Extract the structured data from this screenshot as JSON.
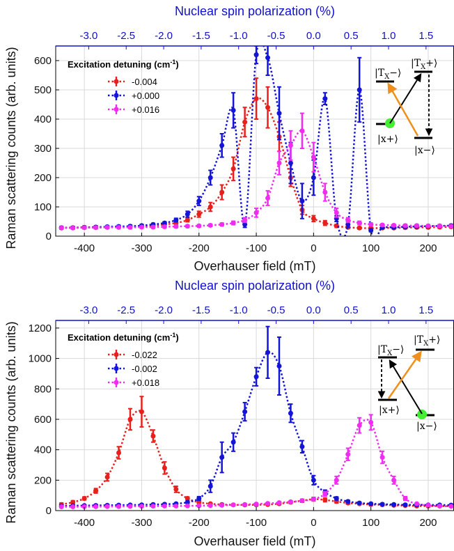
{
  "colors": {
    "red": "#e8201c",
    "blue": "#1414d8",
    "magenta": "#f02cf0",
    "orange": "#f0901c",
    "green": "#44ee33",
    "top_axis": "#1010d0"
  },
  "chart_data": [
    {
      "type": "scatter",
      "xlabel": "Overhauser field (mT)",
      "ylabel": "Raman scattering counts (arb. units)",
      "x2label": "Nuclear spin polarization (%)",
      "xlim": [
        -450,
        245
      ],
      "ylim": [
        0,
        650
      ],
      "x_ticks": [
        "-400",
        "-300",
        "-200",
        "-100",
        "0",
        "100",
        "200"
      ],
      "y_ticks": [
        "0",
        "100",
        "200",
        "300",
        "400",
        "500",
        "600"
      ],
      "x2_ticks": [
        "-3.0",
        "-2.5",
        "-2.0",
        "-1.5",
        "-1.0",
        "-0.5",
        "0.0",
        "0.5",
        "1.0",
        "1.5"
      ],
      "x2_mT_per_percent": 130.8,
      "legend_title": "Excitation detuning (cm",
      "legend_title_sup": "-1",
      "legend_title_end": ")",
      "legend_location": "upper-left",
      "grid": true,
      "series": [
        {
          "name": "-0.004",
          "color": "#e8201c",
          "x": [
            -440,
            -420,
            -400,
            -380,
            -360,
            -340,
            -320,
            -300,
            -280,
            -260,
            -240,
            -220,
            -200,
            -180,
            -160,
            -140,
            -120,
            -100,
            -80,
            -60,
            -40,
            -20,
            0,
            20,
            40,
            60,
            80,
            100,
            120,
            140,
            160,
            180,
            200,
            220,
            240
          ],
          "y": [
            28,
            29,
            30,
            30,
            31,
            32,
            33,
            34,
            36,
            40,
            45,
            55,
            75,
            100,
            150,
            230,
            390,
            470,
            440,
            340,
            200,
            90,
            60,
            45,
            35,
            30,
            28,
            27,
            28,
            28,
            29,
            30,
            30,
            31,
            32
          ],
          "err": [
            4,
            4,
            4,
            4,
            4,
            4,
            4,
            4,
            4,
            4,
            5,
            6,
            10,
            15,
            25,
            40,
            50,
            70,
            70,
            50,
            30,
            15,
            10,
            8,
            5,
            4,
            4,
            4,
            4,
            4,
            4,
            4,
            4,
            4,
            4
          ]
        },
        {
          "name": "+0.000",
          "color": "#1414d8",
          "x": [
            -440,
            -420,
            -400,
            -380,
            -360,
            -340,
            -320,
            -300,
            -280,
            -260,
            -240,
            -220,
            -200,
            -180,
            -160,
            -140,
            -120,
            -100,
            -80,
            -60,
            -40,
            -20,
            0,
            20,
            40,
            60,
            80,
            100,
            120,
            140,
            160,
            180,
            200,
            220,
            240
          ],
          "y": [
            29,
            29,
            30,
            31,
            32,
            33,
            34,
            36,
            40,
            45,
            55,
            75,
            120,
            200,
            310,
            430,
            40,
            620,
            610,
            420,
            250,
            120,
            200,
            470,
            60,
            40,
            500,
            20,
            30,
            30,
            32,
            33,
            34,
            35,
            36
          ],
          "err": [
            4,
            4,
            4,
            4,
            4,
            4,
            4,
            4,
            4,
            4,
            6,
            10,
            15,
            25,
            40,
            60,
            10,
            30,
            60,
            90,
            70,
            60,
            60,
            20,
            10,
            10,
            110,
            5,
            4,
            4,
            4,
            4,
            4,
            4,
            4
          ]
        },
        {
          "name": "+0.016",
          "color": "#f02cf0",
          "x": [
            -440,
            -420,
            -400,
            -380,
            -360,
            -340,
            -320,
            -300,
            -280,
            -260,
            -240,
            -220,
            -200,
            -180,
            -160,
            -140,
            -120,
            -100,
            -80,
            -60,
            -40,
            -20,
            0,
            20,
            40,
            60,
            80,
            100,
            120,
            140,
            160,
            180,
            200,
            220,
            240
          ],
          "y": [
            28,
            28,
            29,
            29,
            30,
            30,
            30,
            31,
            31,
            32,
            33,
            34,
            35,
            37,
            40,
            45,
            55,
            80,
            130,
            250,
            310,
            360,
            270,
            150,
            80,
            55,
            45,
            40,
            38,
            37,
            36,
            36,
            35,
            35,
            34
          ],
          "err": [
            4,
            4,
            4,
            4,
            4,
            4,
            4,
            4,
            4,
            4,
            4,
            4,
            4,
            4,
            5,
            6,
            8,
            15,
            25,
            40,
            50,
            60,
            50,
            30,
            15,
            8,
            6,
            5,
            4,
            4,
            4,
            4,
            4,
            4,
            4
          ]
        }
      ],
      "inset": {
        "levels": [
          "|T",
          "X",
          "−⟩",
          "|T",
          "X",
          "+⟩",
          "|x+⟩",
          "|x−⟩"
        ]
      }
    },
    {
      "type": "scatter",
      "xlabel": "Overhauser field (mT)",
      "ylabel": "Raman scattering counts (arb. units)",
      "x2label": "Nuclear spin polarization (%)",
      "xlim": [
        -450,
        245
      ],
      "ylim": [
        0,
        1250
      ],
      "x_ticks": [
        "-400",
        "-300",
        "-200",
        "-100",
        "0",
        "100",
        "200"
      ],
      "y_ticks": [
        "0",
        "200",
        "400",
        "600",
        "800",
        "1000",
        "1200"
      ],
      "x2_ticks": [
        "-3.0",
        "-2.5",
        "-2.0",
        "-1.5",
        "-1.0",
        "-0.5",
        "0.0",
        "0.5",
        "1.0",
        "1.5"
      ],
      "x2_mT_per_percent": 130.8,
      "legend_title": "Excitation detuning (cm",
      "legend_title_sup": "-1",
      "legend_title_end": ")",
      "legend_location": "upper-left",
      "grid": true,
      "series": [
        {
          "name": "-0.022",
          "color": "#e8201c",
          "x": [
            -440,
            -420,
            -400,
            -380,
            -360,
            -340,
            -320,
            -300,
            -280,
            -260,
            -240,
            -220,
            -200,
            -180,
            -160,
            -140,
            -120,
            -100,
            -80,
            -60,
            -40,
            -20,
            0,
            20,
            40,
            60,
            80,
            100,
            120,
            140,
            160,
            180,
            200,
            220,
            240
          ],
          "y": [
            40,
            55,
            80,
            130,
            220,
            380,
            600,
            650,
            490,
            280,
            140,
            80,
            55,
            45,
            40,
            38,
            37,
            38,
            40,
            45,
            55,
            65,
            75,
            70,
            60,
            50,
            45,
            40,
            38,
            35,
            33,
            30,
            30,
            30,
            30
          ],
          "err": [
            10,
            10,
            10,
            15,
            25,
            40,
            70,
            100,
            40,
            40,
            20,
            10,
            8,
            6,
            6,
            6,
            6,
            6,
            6,
            6,
            8,
            10,
            12,
            12,
            10,
            8,
            6,
            6,
            6,
            6,
            6,
            6,
            6,
            6,
            6
          ]
        },
        {
          "name": "-0.002",
          "color": "#1414d8",
          "x": [
            -440,
            -420,
            -400,
            -380,
            -360,
            -340,
            -320,
            -300,
            -280,
            -260,
            -240,
            -220,
            -200,
            -180,
            -160,
            -140,
            -120,
            -100,
            -80,
            -60,
            -40,
            -20,
            0,
            20,
            40,
            60,
            80,
            100,
            120,
            140,
            160,
            180,
            200,
            220,
            240
          ],
          "y": [
            30,
            32,
            33,
            34,
            35,
            36,
            37,
            38,
            40,
            42,
            45,
            55,
            80,
            160,
            350,
            450,
            650,
            880,
            1040,
            950,
            640,
            420,
            200,
            120,
            80,
            60,
            50,
            45,
            42,
            40,
            38,
            38,
            37,
            37,
            36
          ],
          "err": [
            6,
            6,
            6,
            6,
            6,
            6,
            6,
            6,
            6,
            6,
            6,
            8,
            12,
            40,
            100,
            60,
            60,
            60,
            170,
            190,
            60,
            40,
            30,
            15,
            10,
            8,
            6,
            6,
            6,
            6,
            6,
            6,
            6,
            6,
            6
          ]
        },
        {
          "name": "+0.018",
          "color": "#f02cf0",
          "x": [
            -440,
            -420,
            -400,
            -380,
            -360,
            -340,
            -320,
            -300,
            -280,
            -260,
            -240,
            -220,
            -200,
            -180,
            -160,
            -140,
            -120,
            -100,
            -80,
            -60,
            -40,
            -20,
            0,
            20,
            40,
            60,
            80,
            100,
            120,
            140,
            160,
            180,
            200,
            220,
            240
          ],
          "y": [
            25,
            25,
            26,
            26,
            27,
            27,
            28,
            28,
            29,
            30,
            30,
            31,
            32,
            33,
            35,
            37,
            40,
            43,
            47,
            52,
            58,
            65,
            75,
            110,
            200,
            370,
            560,
            580,
            350,
            200,
            80,
            45,
            35,
            30,
            28
          ],
          "err": [
            4,
            4,
            4,
            4,
            4,
            4,
            4,
            4,
            4,
            4,
            4,
            4,
            4,
            4,
            4,
            4,
            4,
            4,
            5,
            5,
            6,
            8,
            10,
            15,
            25,
            40,
            50,
            50,
            40,
            25,
            12,
            6,
            5,
            4,
            4
          ]
        }
      ],
      "inset": {
        "levels": [
          "|T",
          "X",
          "−⟩",
          "|T",
          "X",
          "+⟩",
          "|x+⟩",
          "|x−⟩"
        ]
      }
    }
  ]
}
